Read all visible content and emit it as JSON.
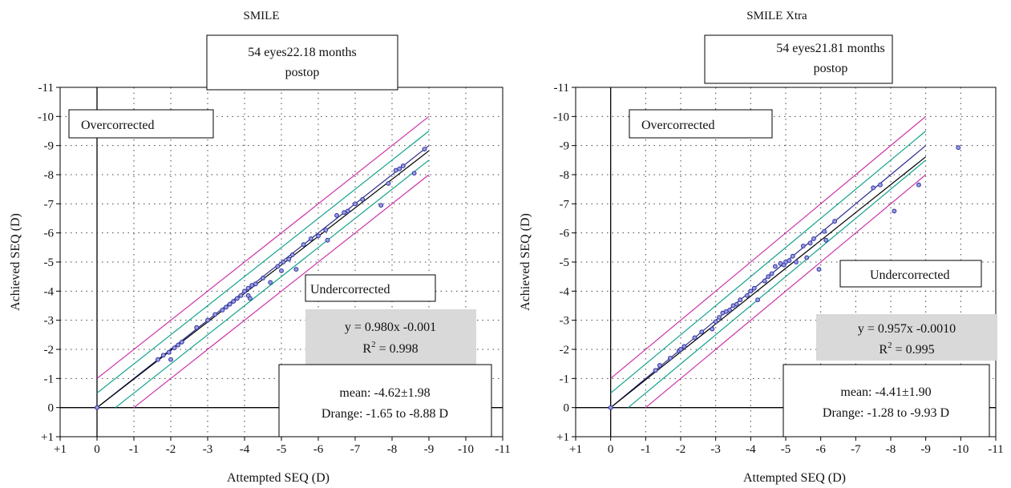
{
  "chart_data": [
    {
      "type": "scatter",
      "title": "SMILE",
      "xlabel": "Attempted SEQ (D)",
      "ylabel": "Achieved SEQ (D)",
      "xlim": [
        1,
        -11
      ],
      "ylim": [
        1,
        -11
      ],
      "tick_labels": [
        "+1",
        "0",
        "-1",
        "-2",
        "-3",
        "-4",
        "-5",
        "-6",
        "-7",
        "-8",
        "-9",
        "-10",
        "-11"
      ],
      "grid": true,
      "info_box": [
        "54 eyes22.18 months",
        "postop"
      ],
      "region_labels": {
        "over": "Overcorrected",
        "under": "Undercorrected"
      },
      "regression": {
        "equation": "y = 0.980x -0.001",
        "r2_prefix": "R",
        "r2_sup": "2",
        "r2_suffix": " = 0.998",
        "slope": 0.98,
        "intercept": -0.001
      },
      "stats": {
        "mean": "mean: -4.62±1.98",
        "range": "Drange: -1.65 to -8.88 D"
      },
      "colors": {
        "points": "#3a3aa8",
        "identity": "#2b2b8f",
        "fit": "#000000",
        "band_05": "#11a38a",
        "band_10": "#cc33aa"
      },
      "points": [
        [
          0,
          0
        ],
        [
          -1.65,
          -1.65
        ],
        [
          -1.8,
          -1.8
        ],
        [
          -1.95,
          -1.9
        ],
        [
          -2.0,
          -1.65
        ],
        [
          -2.1,
          -2.05
        ],
        [
          -2.2,
          -2.15
        ],
        [
          -2.3,
          -2.25
        ],
        [
          -2.7,
          -2.75
        ],
        [
          -3.0,
          -3.0
        ],
        [
          -3.2,
          -3.2
        ],
        [
          -3.4,
          -3.35
        ],
        [
          -3.5,
          -3.45
        ],
        [
          -3.6,
          -3.55
        ],
        [
          -3.7,
          -3.65
        ],
        [
          -3.8,
          -3.75
        ],
        [
          -3.9,
          -3.85
        ],
        [
          -4.0,
          -4.0
        ],
        [
          -4.1,
          -4.1
        ],
        [
          -4.15,
          -3.75
        ],
        [
          -4.2,
          -4.2
        ],
        [
          -4.3,
          -4.25
        ],
        [
          -4.1,
          -3.85
        ],
        [
          -4.5,
          -4.45
        ],
        [
          -4.7,
          -4.3
        ],
        [
          -4.9,
          -4.85
        ],
        [
          -5.0,
          -4.7
        ],
        [
          -5.05,
          -5.0
        ],
        [
          -5.2,
          -5.1
        ],
        [
          -5.3,
          -5.25
        ],
        [
          -5.4,
          -4.75
        ],
        [
          -5.6,
          -5.6
        ],
        [
          -5.8,
          -5.8
        ],
        [
          -6.0,
          -5.9
        ],
        [
          -6.2,
          -6.1
        ],
        [
          -6.25,
          -5.75
        ],
        [
          -6.5,
          -6.6
        ],
        [
          -6.7,
          -6.7
        ],
        [
          -6.8,
          -6.75
        ],
        [
          -7.0,
          -7.0
        ],
        [
          -7.2,
          -7.15
        ],
        [
          -7.7,
          -6.95
        ],
        [
          -7.9,
          -7.7
        ],
        [
          -8.1,
          -8.15
        ],
        [
          -8.2,
          -8.2
        ],
        [
          -8.3,
          -8.3
        ],
        [
          -8.6,
          -8.05
        ],
        [
          -8.88,
          -8.88
        ]
      ]
    },
    {
      "type": "scatter",
      "title": "SMILE Xtra",
      "xlabel": "Attempted SEQ (D)",
      "ylabel": "Achieved SEQ (D)",
      "xlim": [
        1,
        -11
      ],
      "ylim": [
        1,
        -11
      ],
      "tick_labels": [
        "+1",
        "0",
        "-1",
        "-2",
        "-3",
        "-4",
        "-5",
        "-6",
        "-7",
        "-8",
        "-9",
        "-10",
        "-11"
      ],
      "grid": true,
      "info_box": [
        "54 eyes21.81 months",
        "postop"
      ],
      "region_labels": {
        "over": "Overcorrected",
        "under": "Undercorrected"
      },
      "regression": {
        "equation": "y = 0.957x -0.0010",
        "r2_prefix": "R",
        "r2_sup": "2",
        "r2_suffix": " = 0.995",
        "slope": 0.957,
        "intercept": -0.001
      },
      "stats": {
        "mean": "mean: -4.41±1.90",
        "range": "Drange: -1.28 to -9.93 D"
      },
      "colors": {
        "points": "#3a3aa8",
        "identity": "#2b2b8f",
        "fit": "#000000",
        "band_05": "#11a38a",
        "band_10": "#cc33aa"
      },
      "points": [
        [
          0,
          0
        ],
        [
          -1.28,
          -1.28
        ],
        [
          -1.4,
          -1.45
        ],
        [
          -1.7,
          -1.7
        ],
        [
          -1.95,
          -1.95
        ],
        [
          -2.0,
          -2.0
        ],
        [
          -2.1,
          -2.1
        ],
        [
          -2.4,
          -2.4
        ],
        [
          -2.6,
          -2.6
        ],
        [
          -2.9,
          -2.7
        ],
        [
          -3.0,
          -2.95
        ],
        [
          -3.1,
          -3.1
        ],
        [
          -3.2,
          -3.25
        ],
        [
          -3.3,
          -3.3
        ],
        [
          -3.4,
          -3.35
        ],
        [
          -3.5,
          -3.5
        ],
        [
          -3.6,
          -3.55
        ],
        [
          -3.7,
          -3.7
        ],
        [
          -3.9,
          -3.85
        ],
        [
          -4.0,
          -4.0
        ],
        [
          -4.1,
          -4.1
        ],
        [
          -4.2,
          -3.7
        ],
        [
          -4.4,
          -4.35
        ],
        [
          -4.5,
          -4.5
        ],
        [
          -4.6,
          -4.6
        ],
        [
          -4.7,
          -4.85
        ],
        [
          -4.85,
          -4.95
        ],
        [
          -4.95,
          -4.9
        ],
        [
          -5.0,
          -5.0
        ],
        [
          -5.1,
          -5.05
        ],
        [
          -5.2,
          -5.2
        ],
        [
          -5.3,
          -5.0
        ],
        [
          -5.5,
          -5.55
        ],
        [
          -5.6,
          -5.15
        ],
        [
          -5.7,
          -5.65
        ],
        [
          -5.8,
          -5.8
        ],
        [
          -5.95,
          -4.75
        ],
        [
          -6.1,
          -6.05
        ],
        [
          -6.15,
          -5.75
        ],
        [
          -6.4,
          -6.4
        ],
        [
          -7.5,
          -7.55
        ],
        [
          -7.7,
          -7.65
        ],
        [
          -8.1,
          -6.75
        ],
        [
          -8.8,
          -7.65
        ],
        [
          -9.93,
          -8.93
        ]
      ]
    }
  ]
}
